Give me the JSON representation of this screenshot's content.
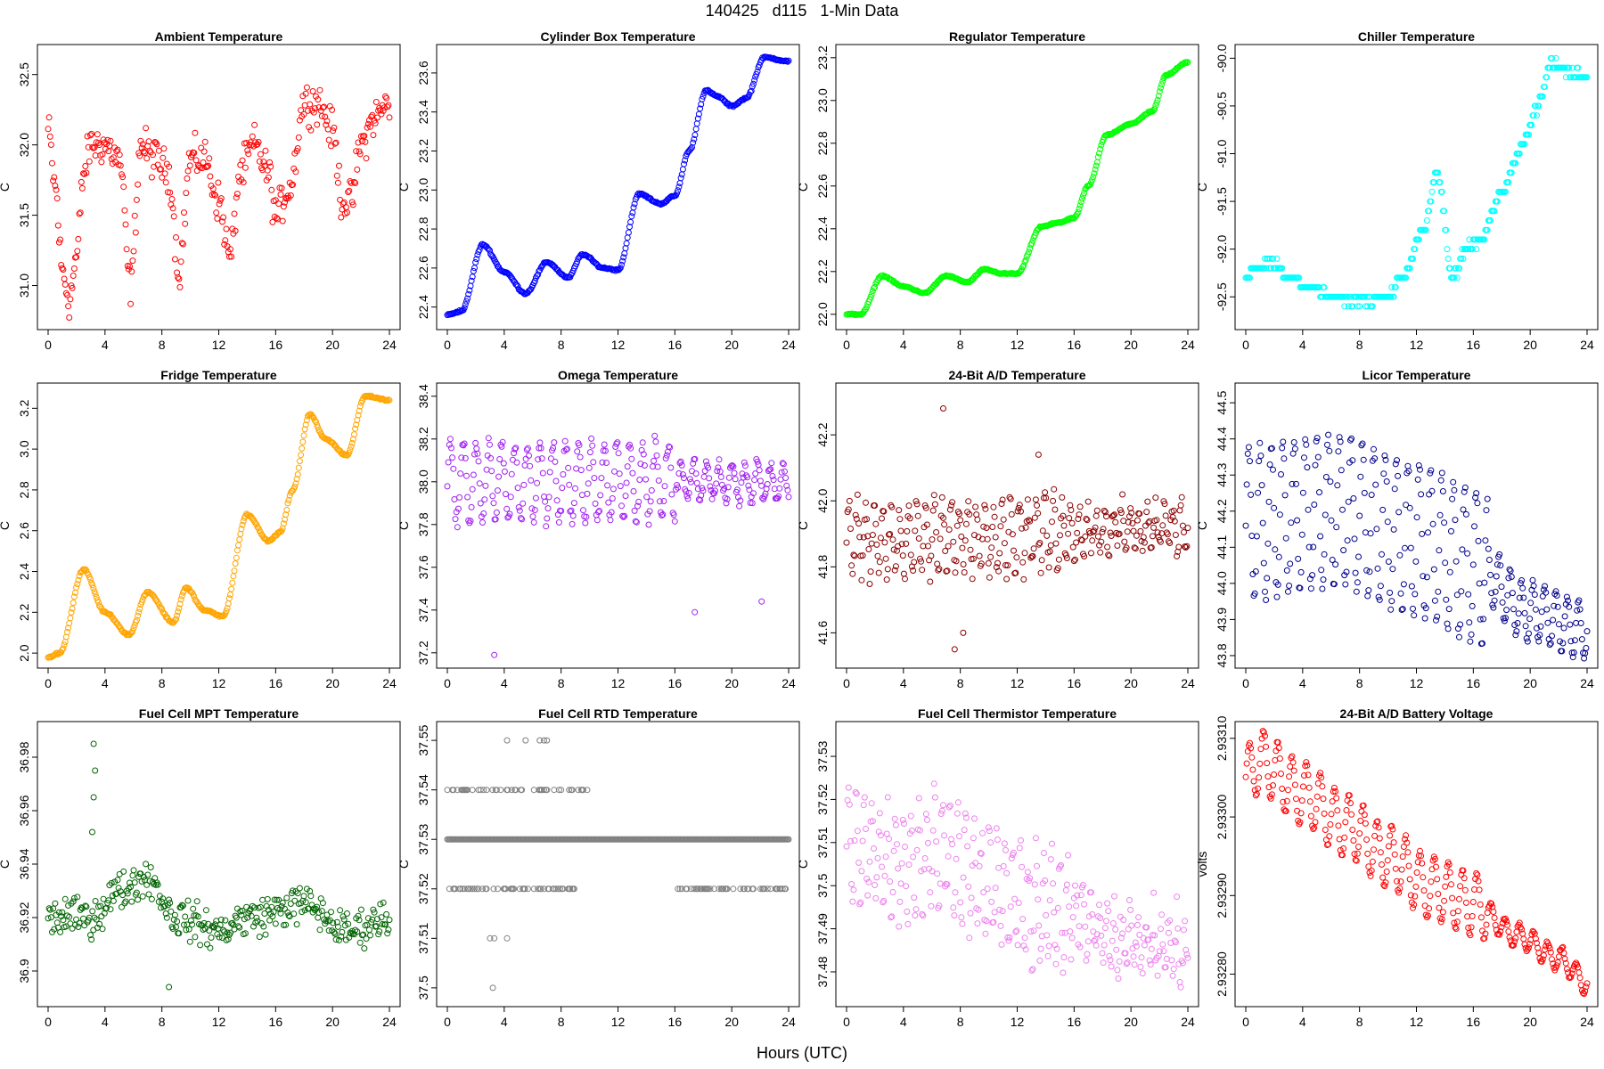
{
  "title": "140425   d115   1-Min Data",
  "xlabel": "Hours (UTC)",
  "chart_data": [
    {
      "type": "scatter",
      "title": "Ambient Temperature",
      "ylabel": "C",
      "color": "#ff0000",
      "series": "ambient",
      "xlim": [
        0,
        24
      ],
      "ylim": [
        30.75,
        32.65
      ],
      "xticks": [
        0,
        4,
        8,
        12,
        16,
        20,
        24
      ],
      "yticks": [
        31.0,
        31.5,
        32.0,
        32.5
      ],
      "keys": [
        [
          0,
          32.1
        ],
        [
          0.5,
          31.7
        ],
        [
          1.0,
          31.1
        ],
        [
          1.5,
          30.9
        ],
        [
          2.0,
          31.2
        ],
        [
          2.5,
          31.8
        ],
        [
          3.0,
          32.0
        ],
        [
          4.0,
          32.0
        ],
        [
          5.0,
          31.9
        ],
        [
          5.8,
          31.0
        ],
        [
          6.5,
          32.0
        ],
        [
          7.5,
          31.9
        ],
        [
          8.5,
          31.8
        ],
        [
          9.2,
          31.1
        ],
        [
          10.0,
          31.9
        ],
        [
          11.0,
          31.9
        ],
        [
          12.0,
          31.6
        ],
        [
          12.8,
          31.2
        ],
        [
          13.5,
          31.8
        ],
        [
          14.5,
          32.0
        ],
        [
          15.5,
          31.8
        ],
        [
          16.0,
          31.5
        ],
        [
          17.0,
          31.7
        ],
        [
          18.0,
          32.3
        ],
        [
          19.0,
          32.3
        ],
        [
          20.0,
          32.1
        ],
        [
          20.7,
          31.6
        ],
        [
          21.3,
          31.6
        ],
        [
          22.0,
          32.0
        ],
        [
          23.0,
          32.2
        ],
        [
          24.0,
          32.3
        ]
      ],
      "noise": 0.12
    },
    {
      "type": "scatter",
      "title": "Cylinder Box Temperature",
      "ylabel": "C",
      "color": "#0000ff",
      "series": "cylbox",
      "xlim": [
        0,
        24
      ],
      "ylim": [
        22.33,
        23.7
      ],
      "xticks": [
        0,
        4,
        8,
        12,
        16,
        20,
        24
      ],
      "yticks": [
        22.4,
        22.6,
        22.8,
        23.0,
        23.2,
        23.4,
        23.6
      ],
      "keys": [
        [
          0,
          22.36
        ],
        [
          1,
          22.38
        ],
        [
          2.5,
          22.72
        ],
        [
          4,
          22.58
        ],
        [
          5.5,
          22.47
        ],
        [
          7,
          22.63
        ],
        [
          8.5,
          22.55
        ],
        [
          9.5,
          22.67
        ],
        [
          11,
          22.6
        ],
        [
          12,
          22.59
        ],
        [
          13.5,
          22.98
        ],
        [
          15,
          22.93
        ],
        [
          16,
          22.97
        ],
        [
          17,
          23.2
        ],
        [
          18.2,
          23.51
        ],
        [
          19,
          23.48
        ],
        [
          20,
          23.43
        ],
        [
          21,
          23.47
        ],
        [
          22.3,
          23.68
        ],
        [
          24,
          23.66
        ]
      ],
      "noise": 0.004
    },
    {
      "type": "scatter",
      "title": "Regulator Temperature",
      "ylabel": "C",
      "color": "#00ff00",
      "series": "regulator",
      "xlim": [
        0,
        24
      ],
      "ylim": [
        21.97,
        23.22
      ],
      "xticks": [
        0,
        4,
        8,
        12,
        16,
        20,
        24
      ],
      "yticks": [
        22.0,
        22.2,
        22.4,
        22.6,
        22.8,
        23.0,
        23.2
      ],
      "keys": [
        [
          0,
          22.0
        ],
        [
          1,
          22.0
        ],
        [
          2.5,
          22.18
        ],
        [
          4,
          22.13
        ],
        [
          5.5,
          22.1
        ],
        [
          7,
          22.18
        ],
        [
          8.5,
          22.15
        ],
        [
          9.7,
          22.21
        ],
        [
          11,
          22.19
        ],
        [
          12,
          22.19
        ],
        [
          13.7,
          22.41
        ],
        [
          15,
          22.43
        ],
        [
          16,
          22.45
        ],
        [
          17,
          22.6
        ],
        [
          18.3,
          22.84
        ],
        [
          20,
          22.89
        ],
        [
          21.5,
          22.95
        ],
        [
          22.5,
          23.12
        ],
        [
          24,
          23.18
        ]
      ],
      "noise": 0.003
    },
    {
      "type": "scatter",
      "title": "Chiller Temperature",
      "ylabel": "C",
      "color": "#00ffff",
      "series": "chiller",
      "xlim": [
        0,
        24
      ],
      "ylim": [
        -92.75,
        -89.95
      ],
      "xticks": [
        0,
        4,
        8,
        12,
        16,
        20,
        24
      ],
      "yticks": [
        -90.0,
        -90.5,
        -91.0,
        -91.5,
        -92.0,
        -92.5
      ],
      "keys": [
        [
          0,
          -92.25
        ],
        [
          2,
          -92.15
        ],
        [
          3,
          -92.3
        ],
        [
          4.5,
          -92.4
        ],
        [
          6,
          -92.5
        ],
        [
          8,
          -92.55
        ],
        [
          10,
          -92.5
        ],
        [
          11,
          -92.3
        ],
        [
          12.5,
          -91.8
        ],
        [
          13.5,
          -91.2
        ],
        [
          14.5,
          -92.3
        ],
        [
          15.5,
          -92.0
        ],
        [
          16.5,
          -91.9
        ],
        [
          18,
          -91.4
        ],
        [
          19.5,
          -90.9
        ],
        [
          20.5,
          -90.5
        ],
        [
          21.5,
          -90.05
        ],
        [
          22,
          -90.1
        ],
        [
          24,
          -90.2
        ]
      ],
      "noise": 0.04,
      "step": 0.1
    },
    {
      "type": "scatter",
      "title": "Fridge Temperature",
      "ylabel": "C",
      "color": "#ffa500",
      "series": "fridge",
      "xlim": [
        0,
        24
      ],
      "ylim": [
        1.97,
        3.28
      ],
      "xticks": [
        0,
        4,
        8,
        12,
        16,
        20,
        24
      ],
      "yticks": [
        2.0,
        2.2,
        2.4,
        2.6,
        2.8,
        3.0,
        3.2
      ],
      "keys": [
        [
          0,
          1.98
        ],
        [
          0.8,
          2.0
        ],
        [
          2.5,
          2.41
        ],
        [
          4,
          2.2
        ],
        [
          5.7,
          2.09
        ],
        [
          7,
          2.3
        ],
        [
          8.8,
          2.15
        ],
        [
          9.7,
          2.32
        ],
        [
          11,
          2.21
        ],
        [
          12.3,
          2.18
        ],
        [
          14,
          2.68
        ],
        [
          15.5,
          2.55
        ],
        [
          16.3,
          2.59
        ],
        [
          17.2,
          2.8
        ],
        [
          18.4,
          3.17
        ],
        [
          19.5,
          3.05
        ],
        [
          21,
          2.97
        ],
        [
          22.3,
          3.26
        ],
        [
          24,
          3.24
        ]
      ],
      "noise": 0.004
    },
    {
      "type": "scatter",
      "title": "Omega Temperature",
      "ylabel": "C",
      "color": "#a020f0",
      "series": "omega",
      "xlim": [
        0,
        24
      ],
      "ylim": [
        37.17,
        38.42
      ],
      "xticks": [
        0,
        4,
        8,
        12,
        16,
        20,
        24
      ],
      "yticks": [
        37.2,
        37.4,
        37.6,
        37.8,
        38.0,
        38.2,
        38.4
      ],
      "keys": [
        [
          0,
          38.0
        ],
        [
          24,
          38.0
        ]
      ],
      "osc": {
        "amp": 0.18,
        "period": 0.9,
        "ampTail": 0.08,
        "tailStart": 16
      },
      "noise": 0.03,
      "outliers": [
        [
          3.3,
          37.19
        ],
        [
          17.4,
          37.39
        ],
        [
          22.1,
          37.44
        ]
      ]
    },
    {
      "type": "scatter",
      "title": "24-Bit A/D Temperature",
      "ylabel": "C",
      "color": "#8b0000",
      "series": "ad24",
      "xlim": [
        0,
        24
      ],
      "ylim": [
        41.52,
        42.33
      ],
      "xticks": [
        0,
        4,
        8,
        12,
        16,
        20,
        24
      ],
      "yticks": [
        41.6,
        41.8,
        42.0,
        42.2
      ],
      "keys": [
        [
          0,
          41.88
        ],
        [
          24,
          41.92
        ]
      ],
      "osc": {
        "amp": 0.1,
        "period": 0.6,
        "ampTail": 0.06,
        "tailStart": 16
      },
      "noise": 0.035,
      "outliers": [
        [
          6.8,
          42.28
        ],
        [
          7.6,
          41.55
        ],
        [
          8.2,
          41.6
        ],
        [
          13.5,
          42.14
        ]
      ]
    },
    {
      "type": "scatter",
      "title": "Licor Temperature",
      "ylabel": "C",
      "color": "#00008b",
      "series": "licor",
      "xlim": [
        0,
        24
      ],
      "ylim": [
        43.79,
        44.53
      ],
      "xticks": [
        0,
        4,
        8,
        12,
        16,
        20,
        24
      ],
      "yticks": [
        43.8,
        43.9,
        44.0,
        44.1,
        44.2,
        44.3,
        44.4,
        44.5
      ],
      "keys": [
        [
          0,
          44.17
        ],
        [
          6.5,
          44.2
        ],
        [
          12,
          44.12
        ],
        [
          16,
          44.05
        ],
        [
          20,
          43.92
        ],
        [
          24,
          43.87
        ]
      ],
      "osc": {
        "amp": 0.21,
        "period": 0.8,
        "ampTail": 0.08,
        "tailStart": 17
      },
      "noise": 0.008
    },
    {
      "type": "scatter",
      "title": "Fuel Cell MPT Temperature",
      "ylabel": "C",
      "color": "#006400",
      "series": "fcmpt",
      "xlim": [
        0,
        24
      ],
      "ylim": [
        36.89,
        36.99
      ],
      "xticks": [
        0,
        4,
        8,
        12,
        16,
        20,
        24
      ],
      "yticks": [
        36.9,
        36.92,
        36.94,
        36.96,
        36.98
      ],
      "keys": [
        [
          0,
          36.92
        ],
        [
          3,
          36.92
        ],
        [
          5,
          36.93
        ],
        [
          7,
          36.935
        ],
        [
          9,
          36.92
        ],
        [
          12,
          36.915
        ],
        [
          14,
          36.92
        ],
        [
          18,
          36.925
        ],
        [
          21,
          36.915
        ],
        [
          24,
          36.92
        ]
      ],
      "noise": 0.006,
      "outliers": [
        [
          3.2,
          36.985
        ],
        [
          3.3,
          36.975
        ],
        [
          3.2,
          36.965
        ],
        [
          3.1,
          36.952
        ],
        [
          8.5,
          36.894
        ]
      ]
    },
    {
      "type": "scatter",
      "title": "Fuel Cell RTD Temperature",
      "ylabel": "C",
      "color": "#808080",
      "series": "fcrtd",
      "xlim": [
        0,
        24
      ],
      "ylim": [
        37.498,
        37.552
      ],
      "xticks": [
        0,
        4,
        8,
        12,
        16,
        20,
        24
      ],
      "yticks": [
        37.5,
        37.51,
        37.52,
        37.53,
        37.54,
        37.55
      ],
      "levels": [
        37.52,
        37.53,
        37.54
      ],
      "outliers": [
        [
          4.2,
          37.55
        ],
        [
          5.5,
          37.55
        ],
        [
          6.5,
          37.55
        ],
        [
          6.8,
          37.55
        ],
        [
          7.0,
          37.55
        ],
        [
          3.0,
          37.51
        ],
        [
          3.3,
          37.51
        ],
        [
          4.2,
          37.51
        ],
        [
          3.2,
          37.5
        ]
      ]
    },
    {
      "type": "scatter",
      "title": "Fuel Cell Thermistor Temperature",
      "ylabel": "C",
      "color": "#ee82ee",
      "series": "fctherm",
      "xlim": [
        0,
        24
      ],
      "ylim": [
        37.474,
        37.536
      ],
      "xticks": [
        0,
        4,
        8,
        12,
        16,
        20,
        24
      ],
      "yticks": [
        37.48,
        37.49,
        37.5,
        37.51,
        37.52,
        37.53
      ],
      "keys": [
        [
          0,
          37.51
        ],
        [
          4,
          37.505
        ],
        [
          7,
          37.508
        ],
        [
          10,
          37.5
        ],
        [
          13,
          37.495
        ],
        [
          16,
          37.493
        ],
        [
          20,
          37.487
        ],
        [
          24,
          37.485
        ]
      ],
      "osc": {
        "amp": 0.012,
        "period": 0.55,
        "ampTail": 0.006,
        "tailStart": 16
      },
      "noise": 0.004
    },
    {
      "type": "scatter",
      "title": "24-Bit A/D Battery Voltage",
      "ylabel": "volts",
      "color": "#ff0000",
      "series": "battery",
      "xlim": [
        0,
        24
      ],
      "ylim": [
        2.93277,
        2.93311
      ],
      "xticks": [
        0,
        4,
        8,
        12,
        16,
        20,
        24
      ],
      "yticks": [
        2.9328,
        2.9329,
        2.933,
        2.9331
      ],
      "keys": [
        [
          0,
          2.93305
        ],
        [
          1,
          2.93307
        ],
        [
          4,
          2.93303
        ],
        [
          7,
          2.93299
        ],
        [
          10,
          2.93295
        ],
        [
          13,
          2.93291
        ],
        [
          16,
          2.93289
        ],
        [
          19,
          2.93285
        ],
        [
          22,
          2.93282
        ],
        [
          24,
          2.93279
        ]
      ],
      "osc": {
        "amp": 4e-05,
        "period": 1.0,
        "ampTail": 1.5e-05,
        "tailStart": 17
      },
      "noise": 2e-06,
      "ydigits": 5
    }
  ]
}
